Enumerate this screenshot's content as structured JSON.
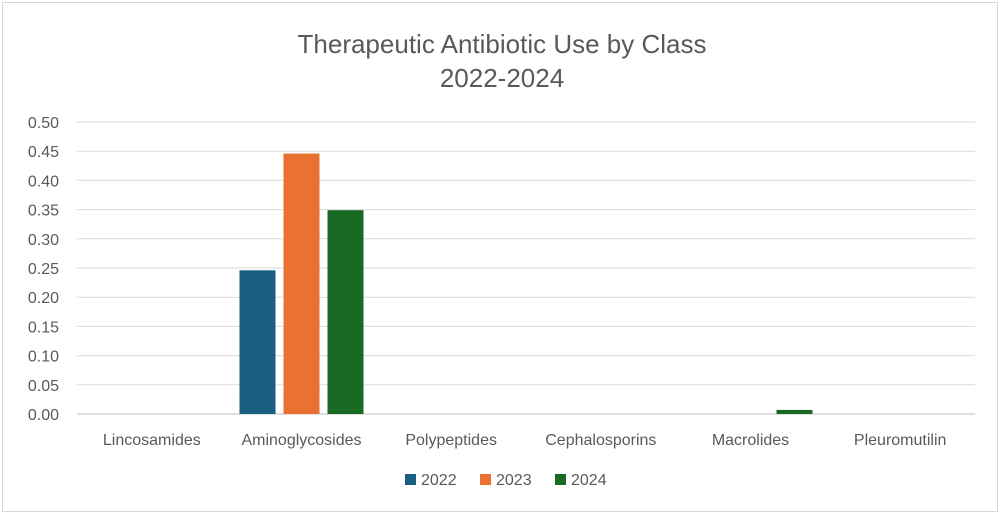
{
  "chart_data": {
    "type": "bar",
    "title": "Therapeutic Antibiotic Use by Class",
    "subtitle": "2022-2024",
    "xlabel": "",
    "ylabel": "",
    "ylim": [
      0,
      0.5
    ],
    "yticks": [
      "0.00",
      "0.05",
      "0.10",
      "0.15",
      "0.20",
      "0.25",
      "0.30",
      "0.35",
      "0.40",
      "0.45",
      "0.50"
    ],
    "grid": true,
    "legend_position": "bottom",
    "categories": [
      "Lincosamides",
      "Aminoglycosides",
      "Polypeptides",
      "Cephalosporins",
      "Macrolides",
      "Pleuromutilin"
    ],
    "series": [
      {
        "name": "2022",
        "color": "#1a5e82",
        "values": [
          0,
          0.246,
          0,
          0,
          0,
          0
        ]
      },
      {
        "name": "2023",
        "color": "#e97132",
        "values": [
          0,
          0.446,
          0,
          0,
          0,
          0
        ]
      },
      {
        "name": "2024",
        "color": "#196b24",
        "values": [
          0,
          0.349,
          0,
          0,
          0.007,
          0
        ]
      }
    ]
  }
}
